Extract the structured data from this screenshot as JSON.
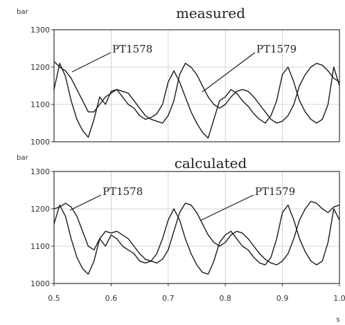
{
  "chart_data": [
    {
      "type": "line",
      "title": "measured",
      "ylabel": "bar",
      "xlabel": "",
      "ylim": [
        1000,
        1300
      ],
      "xlim": [
        0.5,
        1.0
      ],
      "yticks": [
        "1000",
        "1100",
        "1200",
        "1300"
      ],
      "xticks": [],
      "grid": true,
      "series": [
        {
          "name": "PT1578",
          "x": [
            0.5,
            0.51,
            0.52,
            0.53,
            0.54,
            0.55,
            0.56,
            0.57,
            0.58,
            0.59,
            0.6,
            0.61,
            0.62,
            0.63,
            0.64,
            0.65,
            0.66,
            0.67,
            0.68,
            0.69,
            0.7,
            0.71,
            0.72,
            0.73,
            0.74,
            0.75,
            0.76,
            0.77,
            0.78,
            0.79,
            0.8,
            0.81,
            0.82,
            0.83,
            0.84,
            0.85,
            0.86,
            0.87,
            0.88,
            0.89,
            0.9,
            0.91,
            0.92,
            0.93,
            0.94,
            0.95,
            0.96,
            0.97,
            0.98,
            0.99,
            1.0
          ],
          "y": [
            1140,
            1210,
            1175,
            1110,
            1060,
            1030,
            1012,
            1060,
            1120,
            1100,
            1135,
            1140,
            1120,
            1100,
            1090,
            1070,
            1060,
            1065,
            1075,
            1100,
            1160,
            1190,
            1160,
            1120,
            1080,
            1050,
            1025,
            1010,
            1060,
            1110,
            1120,
            1140,
            1130,
            1110,
            1095,
            1075,
            1060,
            1050,
            1070,
            1110,
            1180,
            1200,
            1160,
            1110,
            1080,
            1060,
            1050,
            1060,
            1100,
            1200,
            1150
          ]
        },
        {
          "name": "PT1579",
          "x": [
            0.5,
            0.51,
            0.52,
            0.53,
            0.54,
            0.55,
            0.56,
            0.57,
            0.58,
            0.59,
            0.6,
            0.61,
            0.62,
            0.63,
            0.64,
            0.65,
            0.66,
            0.67,
            0.68,
            0.69,
            0.7,
            0.71,
            0.72,
            0.73,
            0.74,
            0.75,
            0.76,
            0.77,
            0.78,
            0.79,
            0.8,
            0.81,
            0.82,
            0.83,
            0.84,
            0.85,
            0.86,
            0.87,
            0.88,
            0.89,
            0.9,
            0.91,
            0.92,
            0.93,
            0.94,
            0.95,
            0.96,
            0.97,
            0.98,
            0.99,
            1.0
          ],
          "y": [
            1215,
            1200,
            1190,
            1170,
            1140,
            1110,
            1080,
            1080,
            1100,
            1120,
            1130,
            1140,
            1135,
            1130,
            1110,
            1090,
            1070,
            1060,
            1055,
            1050,
            1070,
            1110,
            1180,
            1210,
            1200,
            1180,
            1150,
            1120,
            1100,
            1090,
            1100,
            1120,
            1135,
            1140,
            1135,
            1120,
            1100,
            1080,
            1060,
            1050,
            1055,
            1070,
            1100,
            1150,
            1180,
            1200,
            1210,
            1205,
            1190,
            1170,
            1160
          ]
        }
      ]
    },
    {
      "type": "line",
      "title": "calculated",
      "ylabel": "bar",
      "xlabel": "s",
      "ylim": [
        1000,
        1300
      ],
      "xlim": [
        0.5,
        1.0
      ],
      "yticks": [
        "1000",
        "1100",
        "1200",
        "1300"
      ],
      "xticks": [
        "0.5",
        "0.6",
        "0.7",
        "0.8",
        "0.9",
        "1.0"
      ],
      "grid": true,
      "series": [
        {
          "name": "PT1578",
          "x": [
            0.5,
            0.51,
            0.52,
            0.53,
            0.54,
            0.55,
            0.56,
            0.57,
            0.58,
            0.59,
            0.6,
            0.61,
            0.62,
            0.63,
            0.64,
            0.65,
            0.66,
            0.67,
            0.68,
            0.69,
            0.7,
            0.71,
            0.72,
            0.73,
            0.74,
            0.75,
            0.76,
            0.77,
            0.78,
            0.79,
            0.8,
            0.81,
            0.82,
            0.83,
            0.84,
            0.85,
            0.86,
            0.87,
            0.88,
            0.89,
            0.9,
            0.91,
            0.92,
            0.93,
            0.94,
            0.95,
            0.96,
            0.97,
            0.98,
            0.99,
            1.0
          ],
          "y": [
            1160,
            1210,
            1180,
            1120,
            1070,
            1040,
            1025,
            1060,
            1120,
            1100,
            1130,
            1120,
            1100,
            1090,
            1080,
            1060,
            1055,
            1060,
            1080,
            1120,
            1170,
            1200,
            1170,
            1120,
            1080,
            1050,
            1030,
            1025,
            1060,
            1110,
            1130,
            1140,
            1120,
            1100,
            1090,
            1070,
            1055,
            1050,
            1070,
            1120,
            1190,
            1210,
            1170,
            1120,
            1085,
            1060,
            1050,
            1060,
            1110,
            1200,
            1170
          ]
        },
        {
          "name": "PT1579",
          "x": [
            0.5,
            0.51,
            0.52,
            0.53,
            0.54,
            0.55,
            0.56,
            0.57,
            0.58,
            0.59,
            0.6,
            0.61,
            0.62,
            0.63,
            0.64,
            0.65,
            0.66,
            0.67,
            0.68,
            0.69,
            0.7,
            0.71,
            0.72,
            0.73,
            0.74,
            0.75,
            0.76,
            0.77,
            0.78,
            0.79,
            0.8,
            0.81,
            0.82,
            0.83,
            0.84,
            0.85,
            0.86,
            0.87,
            0.88,
            0.89,
            0.9,
            0.91,
            0.92,
            0.93,
            0.94,
            0.95,
            0.96,
            0.97,
            0.98,
            0.99,
            1.0
          ],
          "y": [
            1200,
            1205,
            1215,
            1205,
            1180,
            1140,
            1100,
            1090,
            1120,
            1140,
            1135,
            1140,
            1130,
            1120,
            1100,
            1080,
            1065,
            1060,
            1055,
            1065,
            1090,
            1140,
            1190,
            1215,
            1210,
            1190,
            1160,
            1130,
            1110,
            1100,
            1110,
            1130,
            1140,
            1135,
            1120,
            1100,
            1080,
            1065,
            1055,
            1050,
            1060,
            1080,
            1120,
            1170,
            1200,
            1220,
            1215,
            1200,
            1190,
            1205,
            1210
          ]
        }
      ]
    }
  ]
}
